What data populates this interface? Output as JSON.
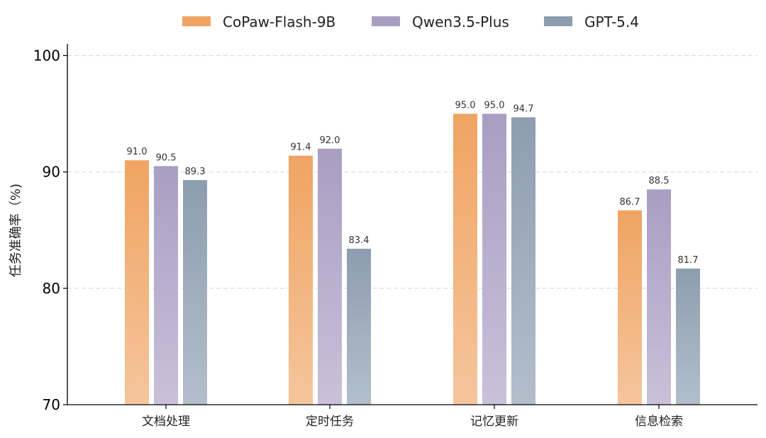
{
  "chart_data": {
    "type": "bar",
    "categories": [
      "文档处理",
      "定时任务",
      "记忆更新",
      "信息检索"
    ],
    "series": [
      {
        "name": "CoPaw-Flash-9B",
        "values": [
          91.0,
          91.4,
          95.0,
          86.7
        ],
        "color_top": "#F0A462",
        "color_bottom": "#F5C59C"
      },
      {
        "name": "Qwen3.5-Plus",
        "values": [
          90.5,
          92.0,
          95.0,
          88.5
        ],
        "color_top": "#A99EC2",
        "color_bottom": "#C9C0DA"
      },
      {
        "name": "GPT-5.4",
        "values": [
          89.3,
          83.4,
          94.7,
          81.7
        ],
        "color_top": "#8D9DB0",
        "color_bottom": "#B2BECB"
      }
    ],
    "ylabel": "任务准确率（%)",
    "ylim": [
      70,
      101
    ],
    "yticks": [
      70,
      80,
      90,
      100
    ],
    "grid": true,
    "legend_position": "top-center",
    "value_labels": true
  }
}
